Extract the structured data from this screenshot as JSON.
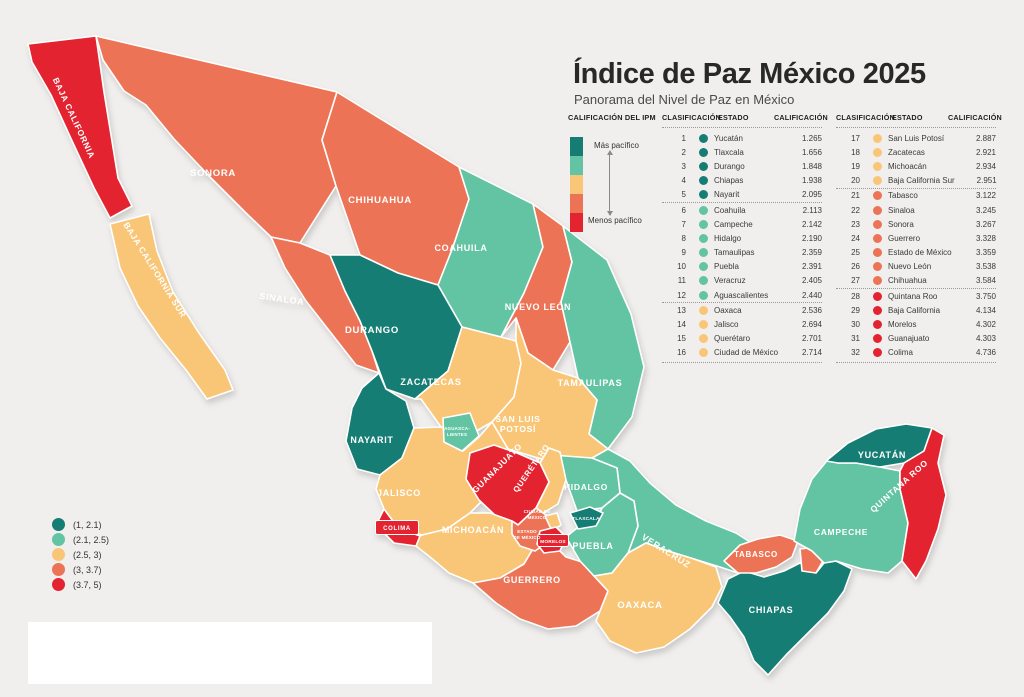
{
  "title": "Índice de Paz México 2025",
  "subtitle": "Panorama del Nivel de Paz en México",
  "colors": {
    "band1": "#157d74",
    "band2": "#63c4a3",
    "band3": "#f9c678",
    "band4": "#ed7356",
    "band5": "#e32430"
  },
  "scale_legend": {
    "header": "CALIFICACIÓN DEL IPM",
    "top_label": "Más pacífico",
    "bottom_label": "Menos pacífico"
  },
  "range_legend": {
    "items": [
      {
        "label": "(1, 2.1)",
        "band": 1
      },
      {
        "label": "(2.1, 2.5)",
        "band": 2
      },
      {
        "label": "(2.5, 3)",
        "band": 3
      },
      {
        "label": "(3, 3.7)",
        "band": 4
      },
      {
        "label": "(3.7, 5)",
        "band": 5
      }
    ]
  },
  "table": {
    "headers": {
      "rank": "CLASIFICACIÓN",
      "state": "ESTADO",
      "score": "CALIFICACIÓN"
    },
    "rows": [
      {
        "rank": "1",
        "state": "Yucatán",
        "score": "1.265",
        "band": 1
      },
      {
        "rank": "2",
        "state": "Tlaxcala",
        "score": "1.656",
        "band": 1
      },
      {
        "rank": "3",
        "state": "Durango",
        "score": "1.848",
        "band": 1
      },
      {
        "rank": "4",
        "state": "Chiapas",
        "score": "1.938",
        "band": 1
      },
      {
        "rank": "5",
        "state": "Nayarit",
        "score": "2.095",
        "band": 1
      },
      {
        "rank": "6",
        "state": "Coahuila",
        "score": "2.113",
        "band": 2
      },
      {
        "rank": "7",
        "state": "Campeche",
        "score": "2.142",
        "band": 2
      },
      {
        "rank": "8",
        "state": "Hidalgo",
        "score": "2.190",
        "band": 2
      },
      {
        "rank": "9",
        "state": "Tamaulipas",
        "score": "2.359",
        "band": 2
      },
      {
        "rank": "10",
        "state": "Puebla",
        "score": "2.391",
        "band": 2
      },
      {
        "rank": "11",
        "state": "Veracruz",
        "score": "2.405",
        "band": 2
      },
      {
        "rank": "12",
        "state": "Aguascalientes",
        "score": "2.440",
        "band": 2
      },
      {
        "rank": "13",
        "state": "Oaxaca",
        "score": "2.536",
        "band": 3
      },
      {
        "rank": "14",
        "state": "Jalisco",
        "score": "2.694",
        "band": 3
      },
      {
        "rank": "15",
        "state": "Querétaro",
        "score": "2.701",
        "band": 3
      },
      {
        "rank": "16",
        "state": "Ciudad de México",
        "score": "2.714",
        "band": 3
      },
      {
        "rank": "17",
        "state": "San Luis Potosí",
        "score": "2.887",
        "band": 3
      },
      {
        "rank": "18",
        "state": "Zacatecas",
        "score": "2.921",
        "band": 3
      },
      {
        "rank": "19",
        "state": "Michoacán",
        "score": "2.934",
        "band": 3
      },
      {
        "rank": "20",
        "state": "Baja California Sur",
        "score": "2.951",
        "band": 3
      },
      {
        "rank": "21",
        "state": "Tabasco",
        "score": "3.122",
        "band": 4
      },
      {
        "rank": "22",
        "state": "Sinaloa",
        "score": "3.245",
        "band": 4
      },
      {
        "rank": "23",
        "state": "Sonora",
        "score": "3.267",
        "band": 4
      },
      {
        "rank": "24",
        "state": "Guerrero",
        "score": "3.328",
        "band": 4
      },
      {
        "rank": "25",
        "state": "Estado de México",
        "score": "3.359",
        "band": 4
      },
      {
        "rank": "26",
        "state": "Nuevo León",
        "score": "3.538",
        "band": 4
      },
      {
        "rank": "27",
        "state": "Chihuahua",
        "score": "3.584",
        "band": 4
      },
      {
        "rank": "28",
        "state": "Quintana Roo",
        "score": "3.750",
        "band": 5
      },
      {
        "rank": "29",
        "state": "Baja California",
        "score": "4.134",
        "band": 5
      },
      {
        "rank": "30",
        "state": "Morelos",
        "score": "4.302",
        "band": 5
      },
      {
        "rank": "31",
        "state": "Guanajuato",
        "score": "4.303",
        "band": 5
      },
      {
        "rank": "32",
        "state": "Colima",
        "score": "4.736",
        "band": 5
      }
    ]
  },
  "map": {
    "band_of": {
      "baja_california": 5,
      "baja_california_sur": 3,
      "sonora": 4,
      "chihuahua": 4,
      "coahuila": 2,
      "nuevo_leon": 4,
      "tamaulipas": 2,
      "sinaloa": 4,
      "durango": 1,
      "zacatecas": 3,
      "san_luis_potosi": 3,
      "nayarit": 1,
      "aguascalientes": 2,
      "jalisco": 3,
      "colima": 5,
      "michoacan": 3,
      "guanajuato": 5,
      "queretaro": 3,
      "hidalgo": 2,
      "estado_de_mexico": 4,
      "cdmx": 3,
      "morelos": 5,
      "tlaxcala": 1,
      "puebla": 2,
      "veracruz": 2,
      "guerrero": 4,
      "oaxaca": 3,
      "tabasco": 4,
      "chiapas": 1,
      "campeche": 2,
      "yucatan": 1,
      "quintana_roo": 5
    },
    "labels": {
      "baja_california": "BAJA CALIFORNIA",
      "baja_california_sur": "BAJA CALIFORNIA SUR",
      "sonora": "SONORA",
      "chihuahua": "CHIHUAHUA",
      "coahuila": "COAHUILA",
      "nuevo_leon": "NUEVO LEÓN",
      "tamaulipas": "TAMAULIPAS",
      "sinaloa": "SINALOA",
      "durango": "DURANGO",
      "zacatecas": "ZACATECAS",
      "slp1": "SAN LUIS",
      "slp2": "POTOSÍ",
      "nayarit": "NAYARIT",
      "ags1": "AGUASCA-",
      "ags2": "LIENTES",
      "jalisco": "JALISCO",
      "guanajuato": "GUANAJUATO",
      "queretaro": "QUERÉTARO",
      "hidalgo": "HIDALGO",
      "colima": "COLIMA",
      "michoacan": "MICHOACÁN",
      "cdmx1": "CIUDAD DE",
      "cdmx2": "MÉXICO",
      "edomex1": "ESTADO",
      "edomex2": "DE MÉXICO",
      "morelos": "MORELOS",
      "tlaxcala": "TLAXCALA",
      "puebla": "PUEBLA",
      "veracruz": "VERACRUZ",
      "guerrero": "GUERRERO",
      "oaxaca": "OAXACA",
      "tabasco": "TABASCO",
      "chiapas": "CHIAPAS",
      "campeche": "CAMPECHE",
      "yucatan": "YUCATÁN",
      "quintana_roo": "QUINTANA ROO"
    }
  }
}
